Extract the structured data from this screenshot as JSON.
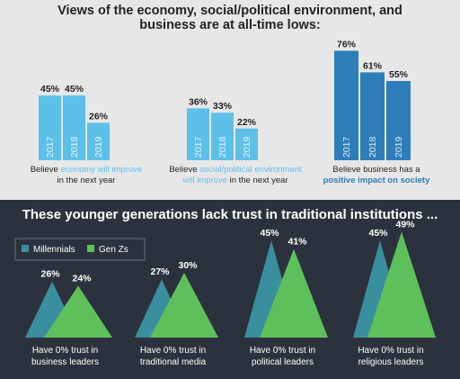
{
  "top_title": "Views of the economy, social/political environment, and business are at all-time lows:",
  "bottom_title": "These younger generations lack trust in traditional institutions ...",
  "colors": {
    "light_blue": "#5cc0e9",
    "dark_blue": "#2e7db8",
    "teal": "#3a8f9f",
    "green": "#5ec05a",
    "dark_bg": "#2c323d",
    "light_bg": "#e7e7e7"
  },
  "chart_data": [
    {
      "type": "bar",
      "categories": [
        "2017",
        "2018",
        "2019"
      ],
      "values": [
        45,
        45,
        26
      ],
      "caption": {
        "pre": "Believe ",
        "highlight": "economy will improve",
        "post": "in the next year"
      }
    },
    {
      "type": "bar",
      "categories": [
        "2017",
        "2018",
        "2019"
      ],
      "values": [
        36,
        33,
        22
      ],
      "caption": {
        "pre": "Believe ",
        "highlight1": "social/political environment",
        "highlight2": "will improve",
        "post": " in the next year"
      }
    },
    {
      "type": "bar",
      "categories": [
        "2017",
        "2018",
        "2019"
      ],
      "values": [
        76,
        61,
        55
      ],
      "caption": {
        "pre": "Believe business has a",
        "highlight": "positive impact on society"
      }
    },
    {
      "type": "area",
      "legend": [
        "Millennials",
        "Gen Zs"
      ],
      "groups": [
        {
          "label_line1": "Have 0% trust in",
          "label_line2": "business leaders",
          "millennials": 26,
          "genz": 24
        },
        {
          "label_line1": "Have 0% trust in",
          "label_line2": "traditional media",
          "millennials": 27,
          "genz": 30
        },
        {
          "label_line1": "Have 0% trust in",
          "label_line2": "political leaders",
          "millennials": 45,
          "genz": 41
        },
        {
          "label_line1": "Have 0% trust in",
          "label_line2": "religious leaders",
          "millennials": 45,
          "genz": 49
        }
      ]
    }
  ]
}
